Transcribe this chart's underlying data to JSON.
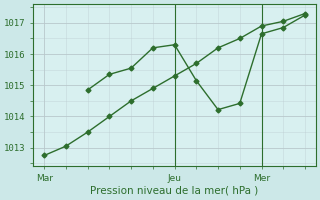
{
  "xlabel": "Pression niveau de la mer( hPa )",
  "background_color": "#cce8e8",
  "plot_bg_color": "#d8f0f0",
  "grid_color": "#b8c8cc",
  "vline_color": "#2d6e2d",
  "line_color": "#2d6e2d",
  "xtick_labels": [
    "Mar",
    "Jeu",
    "Mer"
  ],
  "xtick_positions": [
    0,
    6,
    10
  ],
  "ytick_labels": [
    "1013",
    "1014",
    "1015",
    "1016",
    "1017"
  ],
  "ylim": [
    1012.4,
    1017.6
  ],
  "xlim": [
    -0.5,
    12.5
  ],
  "vline_positions": [
    6,
    10
  ],
  "series1_x": [
    0,
    1,
    2,
    3,
    4,
    5,
    6,
    7,
    8,
    9,
    10,
    11,
    12
  ],
  "series1_y": [
    1012.75,
    1013.05,
    1013.5,
    1014.0,
    1014.5,
    1014.9,
    1015.3,
    1015.7,
    1016.2,
    1016.5,
    1016.9,
    1017.05,
    1017.3
  ],
  "series2_x": [
    2,
    3,
    4,
    5,
    6,
    7,
    8,
    9,
    10,
    11,
    12
  ],
  "series2_y": [
    1014.85,
    1015.35,
    1015.55,
    1016.2,
    1016.3,
    1015.15,
    1014.22,
    1014.42,
    1016.65,
    1016.85,
    1017.25
  ],
  "marker_size": 2.5,
  "linewidth": 1.0,
  "font_color": "#2d6e2d",
  "tick_fontsize": 6.5,
  "xlabel_fontsize": 7.5,
  "spine_color": "#2d6e2d"
}
